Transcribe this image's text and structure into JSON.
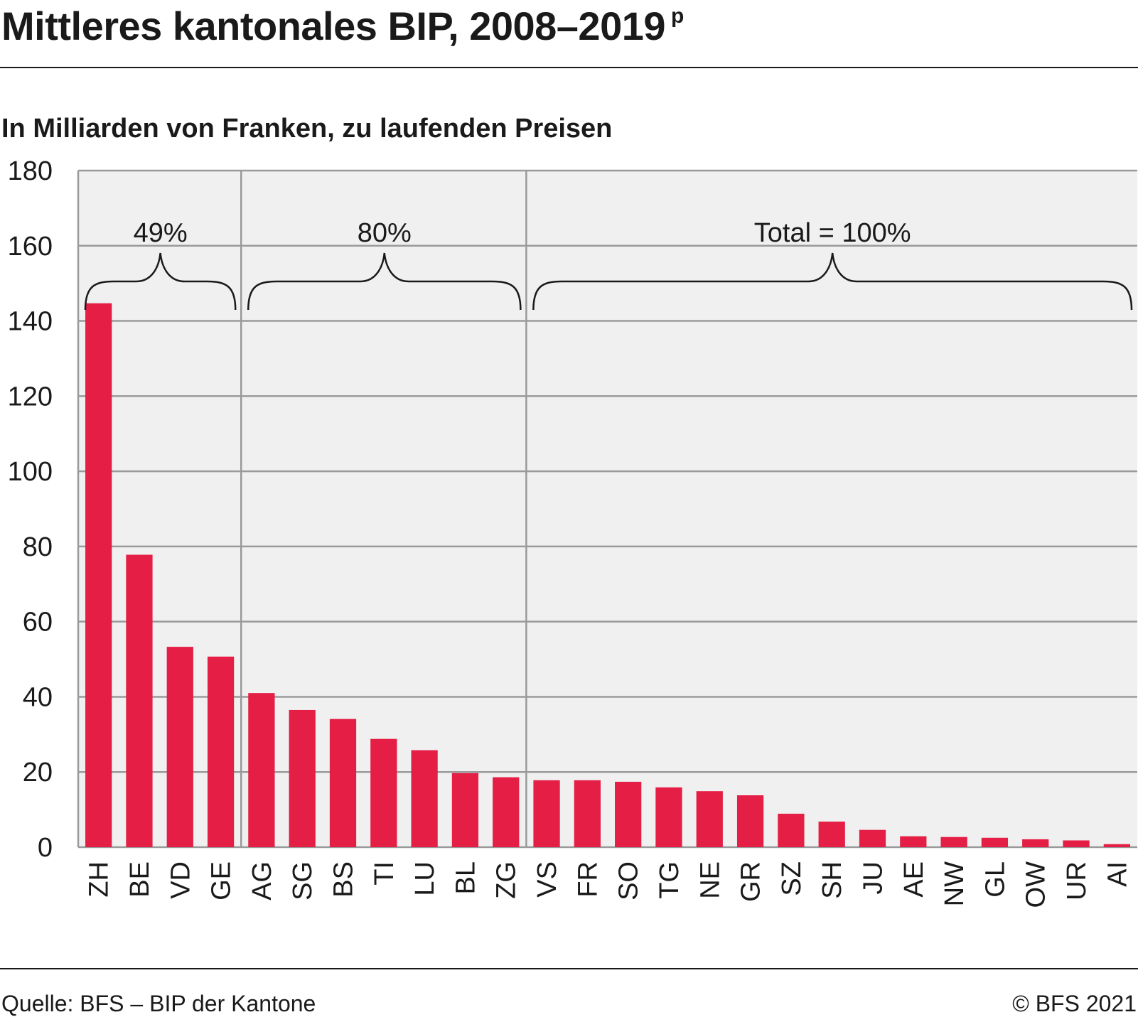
{
  "header": {
    "title": "Mittleres kantonales BIP, 2008–2019",
    "title_sup": "p",
    "subtitle": "In Milliarden von Franken, zu laufenden Preisen"
  },
  "footer": {
    "source": "Quelle: BFS – BIP der Kantone",
    "copyright": "© BFS 2021"
  },
  "chart_data": {
    "type": "bar",
    "title": "Mittleres kantonales BIP, 2008–2019",
    "ylabel": "",
    "xlabel": "",
    "ylim": [
      0,
      180
    ],
    "yticks": [
      0,
      20,
      40,
      60,
      80,
      100,
      120,
      140,
      160,
      180
    ],
    "grid": true,
    "bar_color": "#e41e45",
    "background_color": "#f0f0f0",
    "categories": [
      "ZH",
      "BE",
      "VD",
      "GE",
      "AG",
      "SG",
      "BS",
      "TI",
      "LU",
      "BL",
      "ZG",
      "VS",
      "FR",
      "SO",
      "TG",
      "NE",
      "GR",
      "SZ",
      "SH",
      "JU",
      "AE",
      "NW",
      "GL",
      "OW",
      "UR",
      "AI"
    ],
    "values": [
      144.7,
      77.8,
      53.3,
      50.7,
      41.0,
      36.5,
      34.1,
      28.8,
      25.8,
      19.7,
      18.6,
      17.8,
      17.8,
      17.4,
      15.9,
      14.9,
      13.8,
      8.9,
      6.8,
      4.6,
      2.9,
      2.7,
      2.5,
      2.1,
      1.8,
      0.8
    ],
    "annotations": [
      {
        "label": "49%",
        "from_index": 0,
        "to_index": 3
      },
      {
        "label": "80%",
        "from_index": 4,
        "to_index": 10
      },
      {
        "label": "Total = 100%",
        "from_index": 11,
        "to_index": 25
      }
    ]
  }
}
